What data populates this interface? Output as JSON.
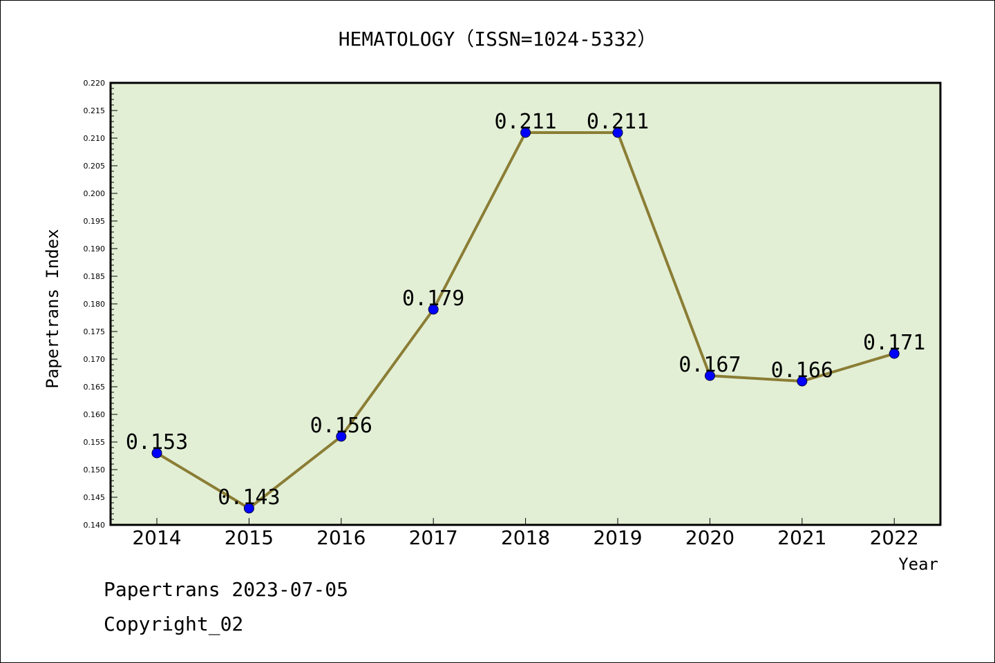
{
  "chart_data": {
    "type": "line",
    "title": "HEMATOLOGY（ISSN=1024-5332）",
    "xlabel": "Year",
    "ylabel": "Papertrans Index",
    "categories": [
      "2014",
      "2015",
      "2016",
      "2017",
      "2018",
      "2019",
      "2020",
      "2021",
      "2022"
    ],
    "series": [
      {
        "values": [
          0.153,
          0.143,
          0.156,
          0.179,
          0.211,
          0.211,
          0.167,
          0.166,
          0.171
        ],
        "data_labels": [
          "0.153",
          "0.143",
          "0.156",
          "0.179",
          "0.211",
          "0.211",
          "0.167",
          "0.166",
          "0.171"
        ],
        "line_color": "#8b7d35",
        "marker_color": "#0000ff"
      }
    ],
    "ylim": [
      0.14,
      0.22
    ],
    "yticks": [
      "0.140",
      "0.145",
      "0.150",
      "0.155",
      "0.160",
      "0.165",
      "0.170",
      "0.175",
      "0.180",
      "0.185",
      "0.190",
      "0.195",
      "0.200",
      "0.205",
      "0.210",
      "0.215",
      "0.220"
    ],
    "grid": false,
    "plot_background": "#e2efd5"
  },
  "footer": {
    "line1": "Papertrans 2023-07-05",
    "line2": "Copyright_02"
  }
}
